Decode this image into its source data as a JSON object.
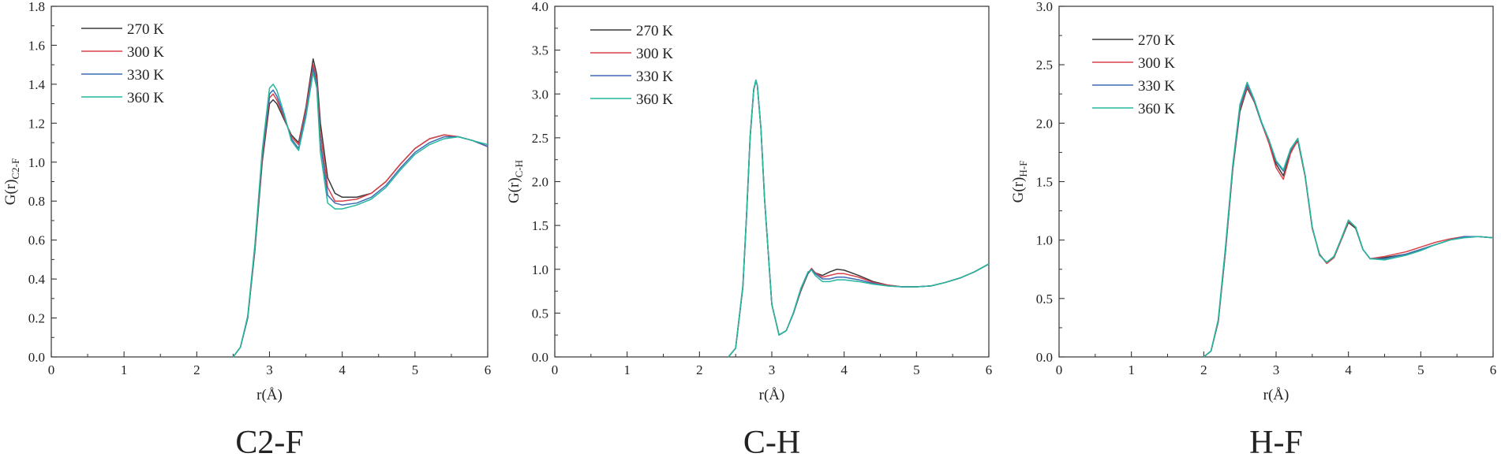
{
  "legend_labels": [
    "270 K",
    "300 K",
    "330 K",
    "360 K"
  ],
  "series_colors": [
    "#3a3a3a",
    "#d9414a",
    "#3f6bb5",
    "#25b89c"
  ],
  "chart_data": [
    {
      "type": "line",
      "caption": "C2-F",
      "xlabel": "r(Å)",
      "ylabel_main": "G(r)",
      "ylabel_sub": "C2-F",
      "xlim": [
        0,
        6
      ],
      "ylim": [
        0,
        1.8
      ],
      "xticks": [
        "0",
        "1",
        "2",
        "3",
        "4",
        "5",
        "6"
      ],
      "yticks": [
        "0.0",
        "0.2",
        "0.4",
        "0.6",
        "0.8",
        "1.0",
        "1.2",
        "1.4",
        "1.6",
        "1.8"
      ],
      "legend_position": "top-left",
      "x": [
        2.5,
        2.6,
        2.7,
        2.8,
        2.9,
        3.0,
        3.05,
        3.1,
        3.2,
        3.3,
        3.4,
        3.5,
        3.6,
        3.65,
        3.7,
        3.8,
        3.9,
        4.0,
        4.2,
        4.4,
        4.6,
        4.8,
        5.0,
        5.2,
        5.4,
        5.6,
        5.8,
        6.0
      ],
      "series": [
        {
          "name": "270 K",
          "values": [
            0.0,
            0.05,
            0.2,
            0.55,
            1.0,
            1.3,
            1.32,
            1.3,
            1.22,
            1.14,
            1.1,
            1.28,
            1.53,
            1.45,
            1.2,
            0.92,
            0.84,
            0.82,
            0.82,
            0.84,
            0.9,
            0.99,
            1.07,
            1.12,
            1.14,
            1.13,
            1.11,
            1.08
          ]
        },
        {
          "name": "300 K",
          "values": [
            0.0,
            0.05,
            0.2,
            0.56,
            1.02,
            1.33,
            1.35,
            1.32,
            1.23,
            1.13,
            1.09,
            1.27,
            1.5,
            1.42,
            1.15,
            0.87,
            0.8,
            0.8,
            0.81,
            0.84,
            0.9,
            0.99,
            1.07,
            1.12,
            1.14,
            1.13,
            1.11,
            1.08
          ]
        },
        {
          "name": "330 K",
          "values": [
            0.0,
            0.05,
            0.2,
            0.57,
            1.04,
            1.35,
            1.37,
            1.34,
            1.24,
            1.12,
            1.07,
            1.25,
            1.48,
            1.4,
            1.1,
            0.83,
            0.79,
            0.78,
            0.79,
            0.82,
            0.88,
            0.97,
            1.05,
            1.1,
            1.13,
            1.13,
            1.11,
            1.08
          ]
        },
        {
          "name": "360 K",
          "values": [
            0.0,
            0.05,
            0.21,
            0.58,
            1.06,
            1.38,
            1.4,
            1.37,
            1.25,
            1.11,
            1.06,
            1.23,
            1.46,
            1.38,
            1.05,
            0.79,
            0.76,
            0.76,
            0.78,
            0.81,
            0.87,
            0.96,
            1.04,
            1.09,
            1.12,
            1.13,
            1.11,
            1.09
          ]
        }
      ]
    },
    {
      "type": "line",
      "caption": "C-H",
      "xlabel": "r(Å)",
      "ylabel_main": "G(r)",
      "ylabel_sub": "C-H",
      "xlim": [
        0,
        6
      ],
      "ylim": [
        0,
        4.0
      ],
      "xticks": [
        "0",
        "1",
        "2",
        "3",
        "4",
        "5",
        "6"
      ],
      "yticks": [
        "0.0",
        "0.5",
        "1.0",
        "1.5",
        "2.0",
        "2.5",
        "3.0",
        "3.5",
        "4.0"
      ],
      "legend_position": "top-left",
      "x": [
        2.4,
        2.5,
        2.6,
        2.65,
        2.7,
        2.75,
        2.78,
        2.8,
        2.85,
        2.9,
        3.0,
        3.1,
        3.2,
        3.3,
        3.4,
        3.5,
        3.55,
        3.6,
        3.7,
        3.8,
        3.9,
        4.0,
        4.2,
        4.4,
        4.6,
        4.8,
        5.0,
        5.2,
        5.4,
        5.6,
        5.8,
        6.0
      ],
      "series": [
        {
          "name": "270 K",
          "values": [
            0.0,
            0.1,
            0.8,
            1.6,
            2.5,
            3.05,
            3.15,
            3.1,
            2.6,
            1.8,
            0.6,
            0.25,
            0.3,
            0.5,
            0.75,
            0.95,
            1.0,
            0.96,
            0.93,
            0.97,
            1.0,
            0.99,
            0.93,
            0.86,
            0.82,
            0.8,
            0.8,
            0.81,
            0.85,
            0.9,
            0.97,
            1.06
          ]
        },
        {
          "name": "300 K",
          "values": [
            0.0,
            0.1,
            0.8,
            1.6,
            2.5,
            3.05,
            3.15,
            3.1,
            2.6,
            1.8,
            0.6,
            0.25,
            0.3,
            0.5,
            0.76,
            0.96,
            1.01,
            0.96,
            0.91,
            0.93,
            0.95,
            0.95,
            0.91,
            0.85,
            0.82,
            0.8,
            0.8,
            0.81,
            0.85,
            0.9,
            0.97,
            1.06
          ]
        },
        {
          "name": "330 K",
          "values": [
            0.0,
            0.1,
            0.8,
            1.6,
            2.5,
            3.05,
            3.15,
            3.1,
            2.6,
            1.8,
            0.6,
            0.25,
            0.3,
            0.5,
            0.77,
            0.96,
            1.0,
            0.95,
            0.89,
            0.89,
            0.91,
            0.91,
            0.88,
            0.84,
            0.81,
            0.8,
            0.8,
            0.81,
            0.85,
            0.9,
            0.97,
            1.06
          ]
        },
        {
          "name": "360 K",
          "values": [
            0.0,
            0.1,
            0.82,
            1.62,
            2.52,
            3.06,
            3.16,
            3.1,
            2.6,
            1.8,
            0.6,
            0.25,
            0.3,
            0.51,
            0.78,
            0.97,
            0.99,
            0.93,
            0.86,
            0.86,
            0.88,
            0.88,
            0.86,
            0.83,
            0.81,
            0.8,
            0.8,
            0.81,
            0.85,
            0.9,
            0.97,
            1.06
          ]
        }
      ]
    },
    {
      "type": "line",
      "caption": "H-F",
      "xlabel": "r(Å)",
      "ylabel_main": "G(r)",
      "ylabel_sub": "H-F",
      "xlim": [
        0,
        6
      ],
      "ylim": [
        0,
        3.0
      ],
      "xticks": [
        "0",
        "1",
        "2",
        "3",
        "4",
        "5",
        "6"
      ],
      "yticks": [
        "0.0",
        "0.5",
        "1.0",
        "1.5",
        "2.0",
        "2.5",
        "3.0"
      ],
      "legend_position": "top-left",
      "x": [
        2.0,
        2.1,
        2.2,
        2.3,
        2.4,
        2.5,
        2.6,
        2.7,
        2.8,
        2.9,
        3.0,
        3.1,
        3.2,
        3.3,
        3.4,
        3.5,
        3.6,
        3.7,
        3.8,
        3.9,
        4.0,
        4.1,
        4.2,
        4.3,
        4.5,
        4.8,
        5.0,
        5.2,
        5.4,
        5.6,
        5.8,
        6.0
      ],
      "series": [
        {
          "name": "270 K",
          "values": [
            0.0,
            0.05,
            0.3,
            0.9,
            1.6,
            2.1,
            2.3,
            2.18,
            2.0,
            1.85,
            1.65,
            1.55,
            1.75,
            1.85,
            1.55,
            1.1,
            0.88,
            0.8,
            0.85,
            1.0,
            1.15,
            1.1,
            0.92,
            0.84,
            0.85,
            0.88,
            0.92,
            0.96,
            1.0,
            1.03,
            1.03,
            1.02
          ]
        },
        {
          "name": "300 K",
          "values": [
            0.0,
            0.05,
            0.3,
            0.9,
            1.6,
            2.12,
            2.31,
            2.18,
            2.0,
            1.83,
            1.62,
            1.52,
            1.74,
            1.86,
            1.55,
            1.1,
            0.88,
            0.8,
            0.85,
            1.0,
            1.16,
            1.11,
            0.92,
            0.84,
            0.86,
            0.9,
            0.94,
            0.98,
            1.01,
            1.03,
            1.03,
            1.02
          ]
        },
        {
          "name": "330 K",
          "values": [
            0.0,
            0.05,
            0.31,
            0.92,
            1.62,
            2.14,
            2.33,
            2.19,
            2.0,
            1.86,
            1.67,
            1.59,
            1.77,
            1.87,
            1.56,
            1.11,
            0.87,
            0.81,
            0.86,
            1.01,
            1.17,
            1.11,
            0.92,
            0.84,
            0.84,
            0.88,
            0.92,
            0.96,
            1.0,
            1.03,
            1.03,
            1.02
          ]
        },
        {
          "name": "360 K",
          "values": [
            0.0,
            0.05,
            0.32,
            0.94,
            1.64,
            2.16,
            2.35,
            2.2,
            2.01,
            1.86,
            1.68,
            1.6,
            1.78,
            1.87,
            1.56,
            1.11,
            0.87,
            0.81,
            0.86,
            1.01,
            1.17,
            1.11,
            0.92,
            0.84,
            0.83,
            0.87,
            0.91,
            0.96,
            1.0,
            1.02,
            1.03,
            1.02
          ]
        }
      ]
    }
  ]
}
